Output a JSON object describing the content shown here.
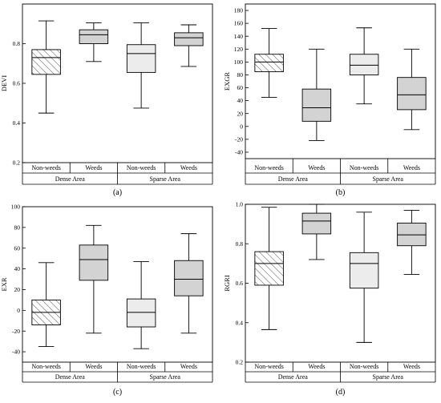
{
  "chart_data": [
    {
      "type": "box",
      "panel_label": "(a)",
      "ylabel": "DEVI",
      "ylim": [
        0.2,
        1.0
      ],
      "yticks": [
        "0.2",
        "0.4",
        "0.6",
        "0.8"
      ],
      "categories": [
        "Non-weeds",
        "Weeds",
        "Non-weeds",
        "Weeds"
      ],
      "groups": [
        "Dense Area",
        "Sparse Area"
      ],
      "boxes": [
        {
          "whisker_low": 0.45,
          "q1": 0.645,
          "median": 0.73,
          "q3": 0.77,
          "whisker_high": 0.915,
          "fill": "hatch"
        },
        {
          "whisker_low": 0.71,
          "q1": 0.8,
          "median": 0.845,
          "q3": 0.87,
          "whisker_high": 0.905,
          "fill": "dark"
        },
        {
          "whisker_low": 0.475,
          "q1": 0.655,
          "median": 0.75,
          "q3": 0.795,
          "whisker_high": 0.905,
          "fill": "light"
        },
        {
          "whisker_low": 0.685,
          "q1": 0.79,
          "median": 0.83,
          "q3": 0.855,
          "whisker_high": 0.895,
          "fill": "dark"
        }
      ]
    },
    {
      "type": "box",
      "panel_label": "(b)",
      "ylabel": "EXGR",
      "ylim": [
        -50,
        190
      ],
      "yticks": [
        "-40",
        "-20",
        "0",
        "20",
        "40",
        "60",
        "80",
        "100",
        "120",
        "140",
        "160",
        "180"
      ],
      "categories": [
        "Non-weeds",
        "Weeds",
        "Non-weeds",
        "Weeds"
      ],
      "groups": [
        "Dense Area",
        "Sparse Area"
      ],
      "boxes": [
        {
          "whisker_low": 45,
          "q1": 85,
          "median": 100,
          "q3": 112,
          "whisker_high": 152,
          "fill": "hatch"
        },
        {
          "whisker_low": -22,
          "q1": 8,
          "median": 29,
          "q3": 58,
          "whisker_high": 120,
          "fill": "dark"
        },
        {
          "whisker_low": 35,
          "q1": 80,
          "median": 95,
          "q3": 112,
          "whisker_high": 153,
          "fill": "light"
        },
        {
          "whisker_low": -5,
          "q1": 26,
          "median": 49,
          "q3": 76,
          "whisker_high": 120,
          "fill": "dark"
        }
      ]
    },
    {
      "type": "box",
      "panel_label": "(c)",
      "ylabel": "EXR",
      "ylim": [
        -50,
        100
      ],
      "yticks": [
        "-40",
        "-20",
        "0",
        "20",
        "40",
        "60",
        "80",
        "100"
      ],
      "categories": [
        "Non-weeds",
        "Weeds",
        "Non-weeds",
        "Weeds"
      ],
      "groups": [
        "Dense Area",
        "Sparse Area"
      ],
      "boxes": [
        {
          "whisker_low": -35,
          "q1": -14,
          "median": -2,
          "q3": 10,
          "whisker_high": 46,
          "fill": "hatch"
        },
        {
          "whisker_low": -22,
          "q1": 29,
          "median": 49,
          "q3": 63,
          "whisker_high": 82,
          "fill": "dark"
        },
        {
          "whisker_low": -37,
          "q1": -16,
          "median": -2,
          "q3": 11,
          "whisker_high": 47,
          "fill": "light"
        },
        {
          "whisker_low": -22,
          "q1": 14,
          "median": 30,
          "q3": 48,
          "whisker_high": 74,
          "fill": "dark"
        }
      ]
    },
    {
      "type": "box",
      "panel_label": "(d)",
      "ylabel": "RGRI",
      "ylim": [
        0.2,
        1.0
      ],
      "yticks": [
        "0.2",
        "0.4",
        "0.6",
        "0.8",
        "1.0"
      ],
      "categories": [
        "Non-weeds",
        "Weeds",
        "Non-weeds",
        "Weeds"
      ],
      "groups": [
        "Dense Area",
        "Sparse Area"
      ],
      "boxes": [
        {
          "whisker_low": 0.365,
          "q1": 0.59,
          "median": 0.7,
          "q3": 0.76,
          "whisker_high": 0.985,
          "fill": "hatch"
        },
        {
          "whisker_low": 0.72,
          "q1": 0.85,
          "median": 0.915,
          "q3": 0.955,
          "whisker_high": 1.0,
          "fill": "dark"
        },
        {
          "whisker_low": 0.3,
          "q1": 0.575,
          "median": 0.7,
          "q3": 0.755,
          "whisker_high": 0.96,
          "fill": "light"
        },
        {
          "whisker_low": 0.645,
          "q1": 0.79,
          "median": 0.845,
          "q3": 0.905,
          "whisker_high": 0.97,
          "fill": "dark"
        }
      ]
    }
  ],
  "colors": {
    "dark": "#d3d3d3",
    "light": "#ececec",
    "hatch_line": "#555555",
    "stroke": "#000000"
  }
}
